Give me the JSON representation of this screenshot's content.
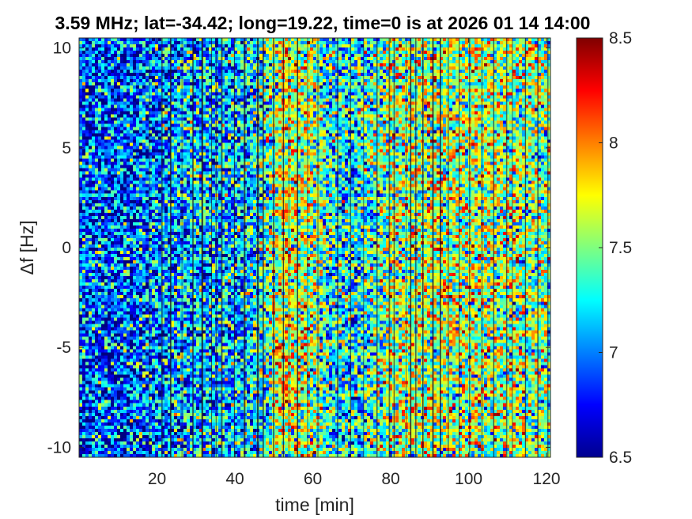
{
  "chart_data": {
    "type": "heatmap",
    "title": "3.59 MHz;  lat=-34.42; long=19.22, time=0 is at 2026 01 14 14:00",
    "xlabel": "time [min]",
    "ylabel": "Δf [Hz]",
    "xlim": [
      0,
      121
    ],
    "ylim": [
      -10.5,
      10.5
    ],
    "x_ticks": [
      20,
      40,
      60,
      80,
      100,
      120
    ],
    "x_tick_labels": [
      "20",
      "40",
      "60",
      "80",
      "100",
      "120"
    ],
    "y_ticks": [
      10,
      5,
      0,
      -5,
      -10
    ],
    "y_tick_labels": [
      "10",
      "5",
      "0",
      "-5",
      "-10"
    ],
    "colormap": "jet",
    "clim": [
      6.5,
      8.5
    ],
    "colorbar_ticks": [
      8.5,
      8,
      7.5,
      7,
      6.5
    ],
    "colorbar_tick_labels": [
      "8.5",
      "8",
      "7.5",
      "7",
      "6.5"
    ],
    "intensity_profile_over_time": [
      {
        "time": 0,
        "level": 6.9
      },
      {
        "time": 10,
        "level": 6.9
      },
      {
        "time": 20,
        "level": 7.0
      },
      {
        "time": 30,
        "level": 7.15
      },
      {
        "time": 40,
        "level": 7.1
      },
      {
        "time": 48,
        "level": 7.3
      },
      {
        "time": 52,
        "level": 7.75
      },
      {
        "time": 60,
        "level": 7.55
      },
      {
        "time": 64,
        "level": 7.3
      },
      {
        "time": 70,
        "level": 7.2
      },
      {
        "time": 80,
        "level": 7.55
      },
      {
        "time": 90,
        "level": 7.6
      },
      {
        "time": 100,
        "level": 7.6
      },
      {
        "time": 110,
        "level": 7.55
      },
      {
        "time": 120,
        "level": 7.5
      }
    ],
    "grid": false
  },
  "colors": {
    "stripe": "#1a1a2e",
    "axis": "#262626"
  }
}
